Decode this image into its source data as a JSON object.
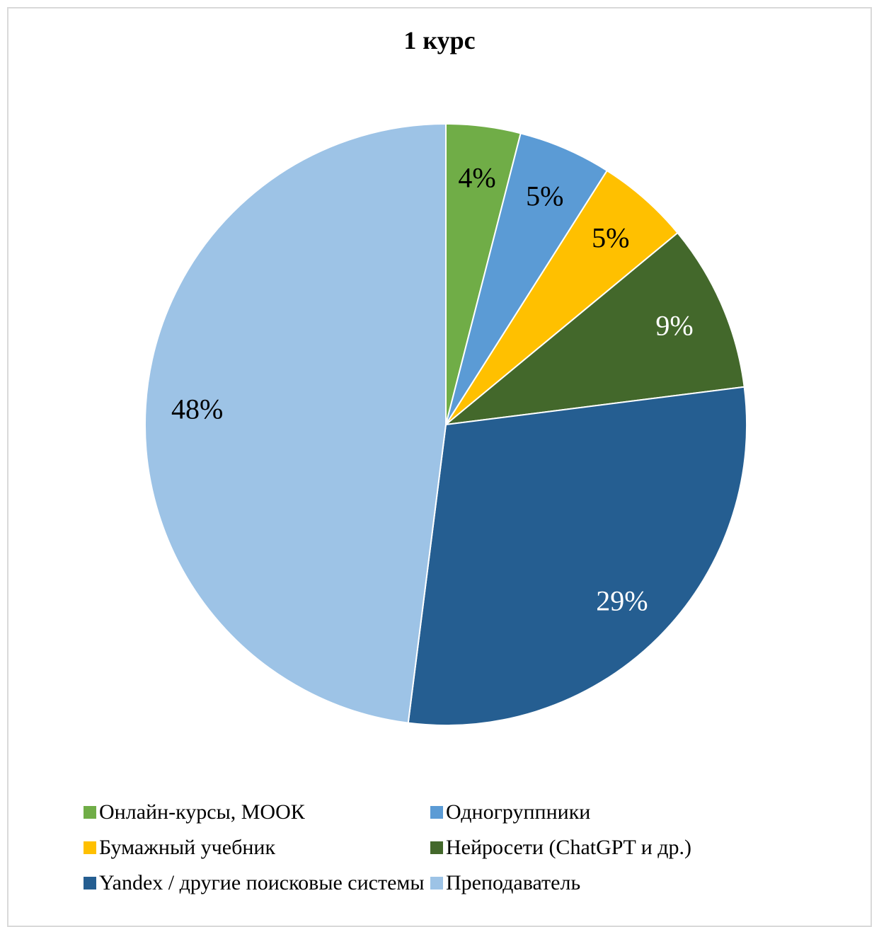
{
  "chart_data": {
    "type": "pie",
    "title": "1 курс",
    "start_angle_deg": 0,
    "direction": "clockwise",
    "legend_placement": "bottom",
    "slices": [
      {
        "name": "Онлайн-курсы, МООК",
        "value": 4,
        "label": "4%",
        "color": "#70ad47",
        "label_color": "#000000"
      },
      {
        "name": "Одногруппники",
        "value": 5,
        "label": "5%",
        "color": "#5b9bd5",
        "label_color": "#000000"
      },
      {
        "name": "Бумажный учебник",
        "value": 5,
        "label": "5%",
        "color": "#ffc000",
        "label_color": "#000000"
      },
      {
        "name": "Нейросети (ChatGPT и др.)",
        "value": 9,
        "label": "9%",
        "color": "#43682b",
        "label_color": "#ffffff"
      },
      {
        "name": "Yandex / другие поисковые системы",
        "value": 29,
        "label": "29%",
        "color": "#255e91",
        "label_color": "#ffffff"
      },
      {
        "name": "Преподаватель",
        "value": 48,
        "label": "48%",
        "color": "#9dc3e6",
        "label_color": "#000000"
      }
    ]
  }
}
